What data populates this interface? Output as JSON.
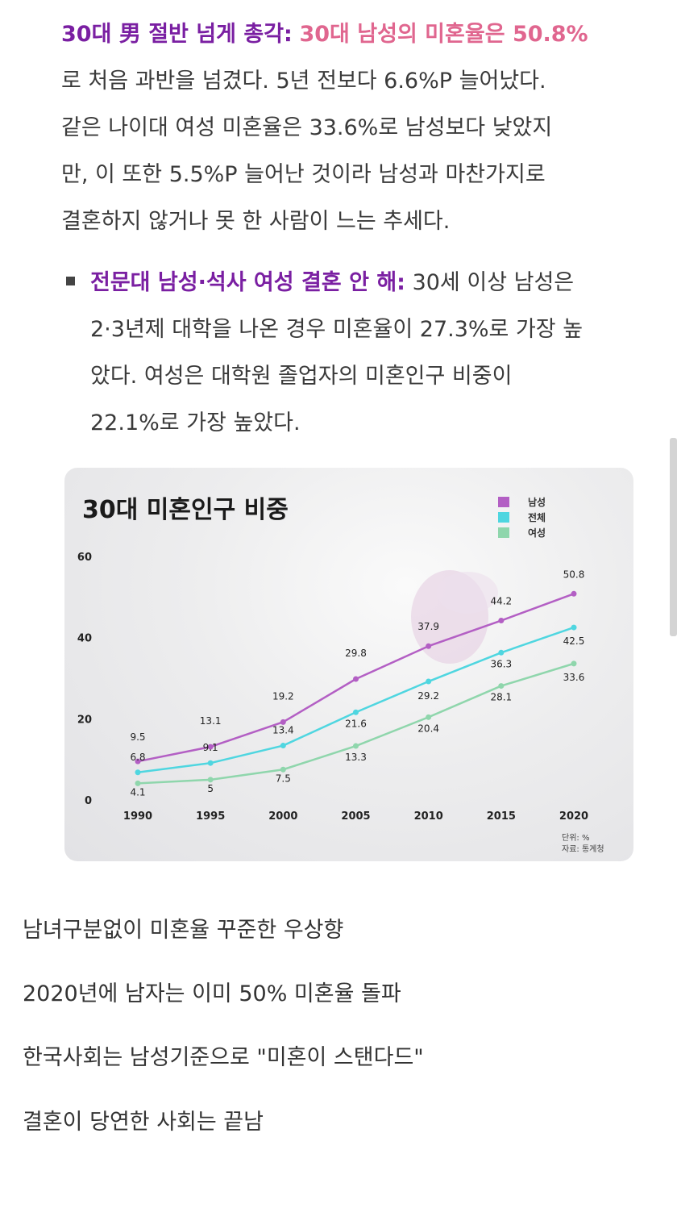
{
  "article": {
    "p1_lead": "30대 男 절반 넘게 총각:",
    "p1_highlight": "30대 남성의 미혼율은 50.8%",
    "p1_lines": [
      "로 처음 과반을 넘겼다. 5년 전보다 6.6%P 늘어났다.",
      "같은 나이대 여성 미혼율은 33.6%로 남성보다 낮았지",
      "만, 이 또한 5.5%P 늘어난 것이라 남성과 마찬가지로",
      "결혼하지 않거나 못 한 사람이 느는 추세다."
    ],
    "p2_lead": "전문대 남성·석사 여성 결혼 안 해:",
    "p2_first": "30세 이상 남성은",
    "p2_lines": [
      "2·3년제 대학을 나온 경우 미혼율이 27.3%로 가장 높",
      "았다. 여성은 대학원 졸업자의 미혼인구 비중이",
      "22.1%로 가장 높았다."
    ]
  },
  "chart_data": {
    "type": "line",
    "title": "30대 미혼인구 비중",
    "categories": [
      "1990",
      "1995",
      "2000",
      "2005",
      "2010",
      "2015",
      "2020"
    ],
    "ylim": [
      0,
      60
    ],
    "yticks": [
      "0",
      "20",
      "40",
      "60"
    ],
    "grid": false,
    "legend_position": "top-right",
    "series": [
      {
        "name": "남성",
        "color": "#b35fc4",
        "values": [
          9.5,
          13.1,
          19.2,
          29.8,
          37.9,
          44.2,
          50.8
        ]
      },
      {
        "name": "전체",
        "color": "#4fd6e0",
        "values": [
          6.8,
          9.1,
          13.4,
          21.6,
          29.2,
          36.3,
          42.5
        ]
      },
      {
        "name": "여성",
        "color": "#8fd6ac",
        "values": [
          4.1,
          5,
          7.5,
          13.3,
          20.4,
          28.1,
          33.6
        ]
      }
    ],
    "footnote_unit": "단위: %",
    "footnote_source": "자료: 통계청"
  },
  "comments": [
    "남녀구분없이 미혼율 꾸준한 우상향",
    "2020년에 남자는 이미 50% 미혼율 돌파",
    "한국사회는 남성기준으로 \"미혼이 스탠다드\"",
    "결혼이 당연한 사회는 끝남"
  ]
}
